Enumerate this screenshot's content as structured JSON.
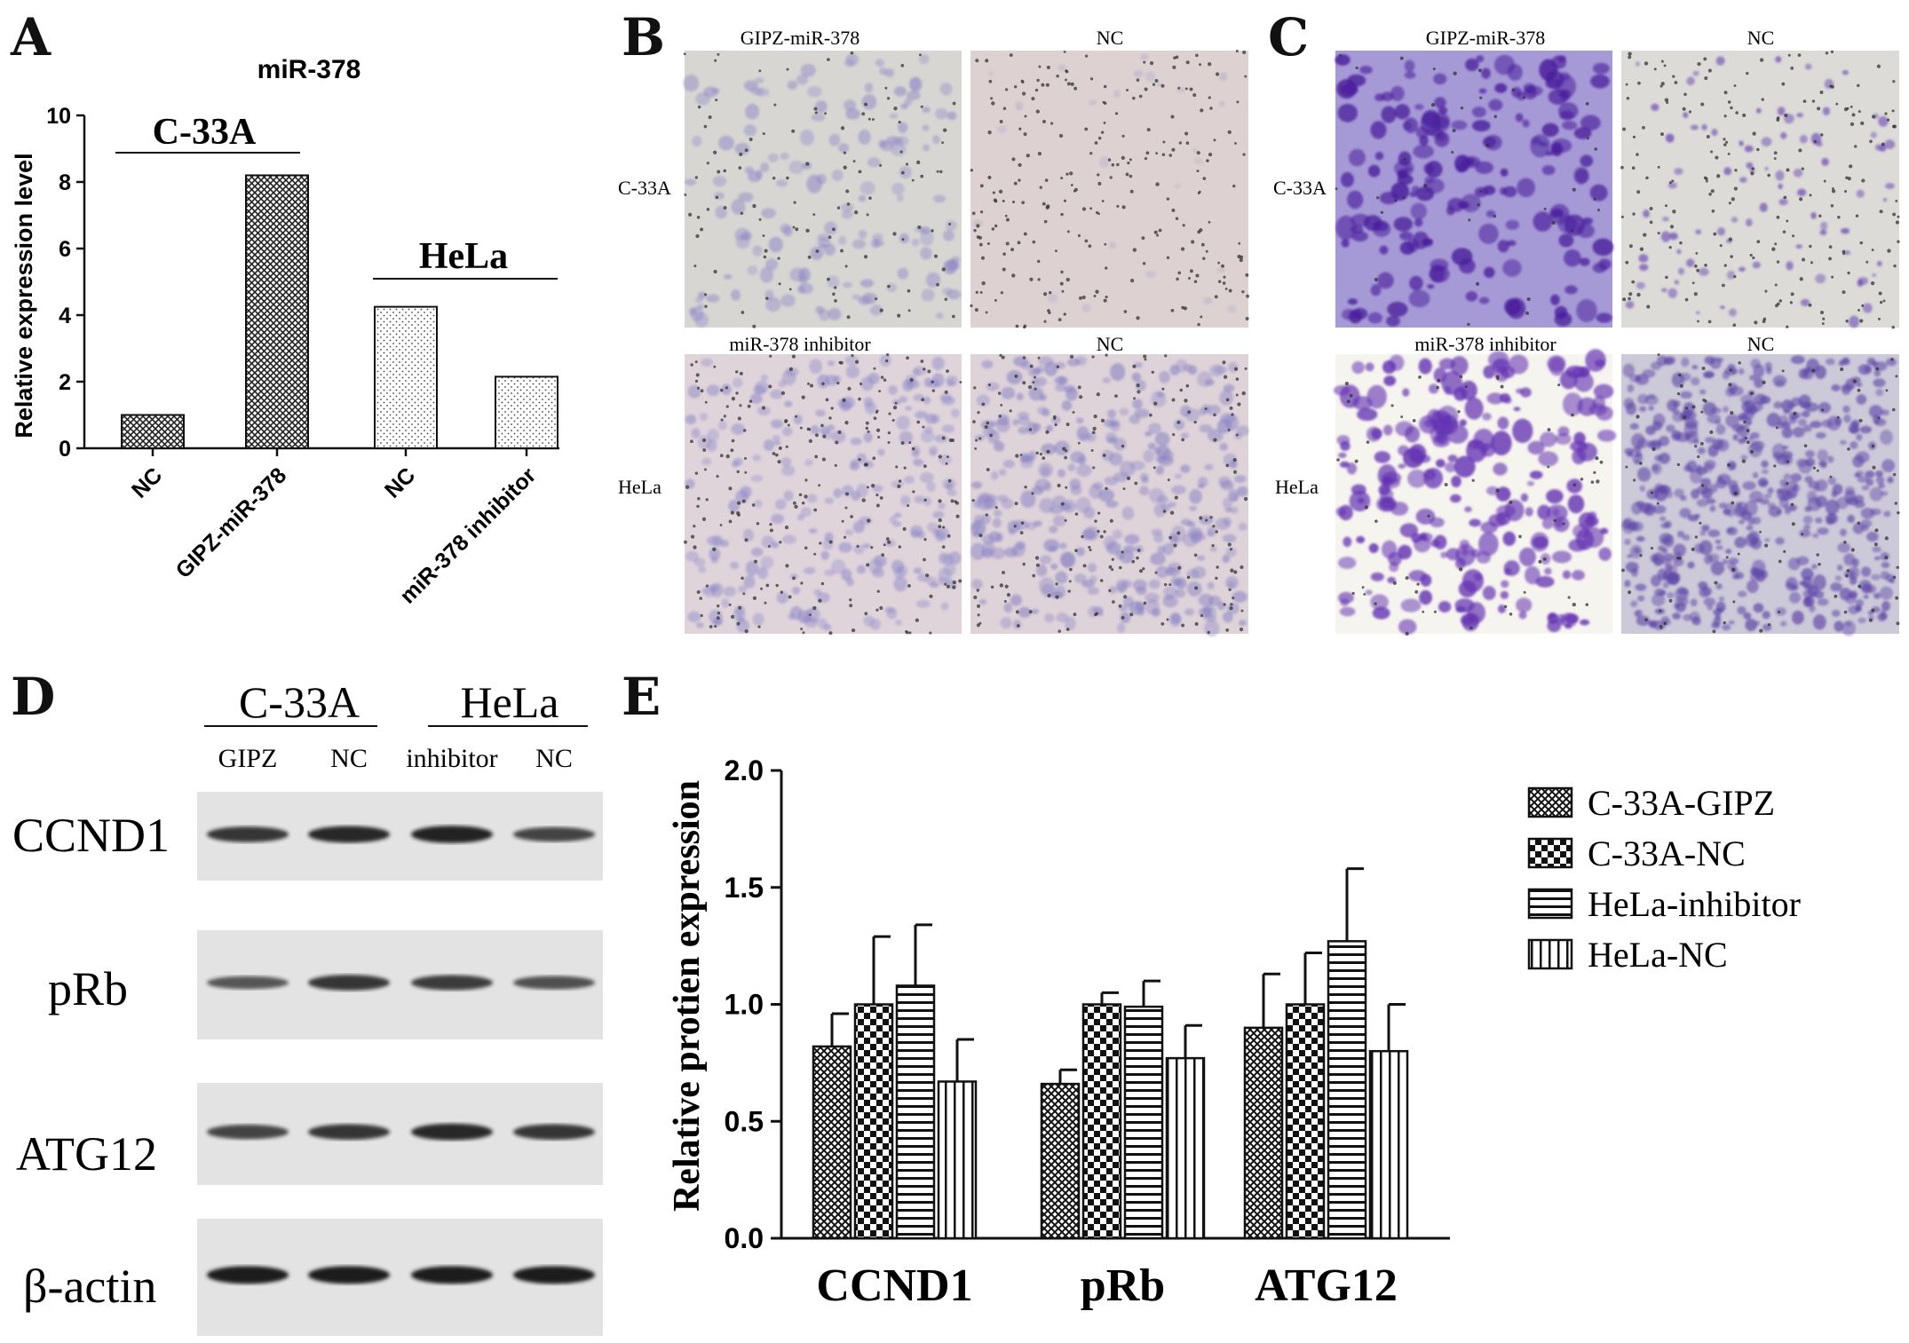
{
  "panels": {
    "a": "A",
    "b": "B",
    "c": "C",
    "d": "D",
    "e": "E"
  },
  "colors": {
    "stain_light": "#8d86c7",
    "stain_dark": "#5b2ea8",
    "field_grey": "#d9d8d2",
    "field_pinkish": "#e2dde0",
    "blot_bg": "#e6e6e6",
    "band": "#262626"
  },
  "chart_a": {
    "title": "miR-378",
    "ylabel": "Relative expression level",
    "group_labels": [
      "C-33A",
      "HeLa"
    ]
  },
  "chart_data": [
    {
      "type": "bar",
      "title": "miR-378",
      "xlabel": "",
      "ylabel": "Relative expression level",
      "categories": [
        "NC",
        "GIPZ-miR-378",
        "NC",
        "miR-378 inhibitor"
      ],
      "values": [
        1.0,
        8.2,
        4.25,
        2.15
      ],
      "ylim": [
        0,
        10
      ],
      "yticks": [
        0,
        2,
        4,
        6,
        8,
        10
      ],
      "groups": [
        {
          "label": "C-33A",
          "categories": [
            0,
            1
          ]
        },
        {
          "label": "HeLa",
          "categories": [
            2,
            3
          ]
        }
      ],
      "patterns": [
        "crosshatch",
        "crosshatch",
        "dots",
        "dots"
      ],
      "grid": false
    },
    {
      "type": "bar",
      "title": "",
      "xlabel": "",
      "ylabel": "Relative protien expression",
      "categories": [
        "CCND1",
        "pRb",
        "ATG12"
      ],
      "ylim": [
        0,
        2.0
      ],
      "yticks": [
        "0.0",
        "0.5",
        "1.0",
        "1.5",
        "2.0"
      ],
      "series": [
        {
          "name": "C-33A-GIPZ",
          "values": [
            0.82,
            0.66,
            0.9
          ],
          "errors": [
            0.14,
            0.06,
            0.23
          ],
          "pattern": "fine-check"
        },
        {
          "name": "C-33A-NC",
          "values": [
            1.0,
            1.0,
            1.0
          ],
          "errors": [
            0.29,
            0.05,
            0.22
          ],
          "pattern": "checker"
        },
        {
          "name": "HeLa-inhibitor",
          "values": [
            1.08,
            0.99,
            1.27
          ],
          "errors": [
            0.26,
            0.11,
            0.31
          ],
          "pattern": "horizontal"
        },
        {
          "name": "HeLa-NC",
          "values": [
            0.67,
            0.77,
            0.8
          ],
          "errors": [
            0.18,
            0.14,
            0.2
          ],
          "pattern": "vertical"
        }
      ],
      "legend": "right",
      "grid": false
    }
  ],
  "micrographs": {
    "b": {
      "col_titles_top": [
        "GIPZ-miR-378",
        "NC"
      ],
      "col_titles_bottom": [
        "miR-378 inhibitor",
        "NC"
      ],
      "row_labels": [
        "C-33A",
        "HeLa"
      ]
    },
    "c": {
      "col_titles_top": [
        "GIPZ-miR-378",
        "NC"
      ],
      "col_titles_bottom": [
        "miR-378 inhibitor",
        "NC"
      ],
      "row_labels": [
        "C-33A",
        "HeLa"
      ]
    }
  },
  "western": {
    "groups": [
      "C-33A",
      "HeLa"
    ],
    "lanes": [
      "GIPZ",
      "NC",
      "inhibitor",
      "NC"
    ],
    "proteins": [
      "CCND1",
      "pRb",
      "ATG12",
      "β-actin"
    ],
    "band_intensity": [
      [
        0.8,
        0.9,
        0.95,
        0.7
      ],
      [
        0.55,
        0.8,
        0.75,
        0.6
      ],
      [
        0.7,
        0.8,
        0.9,
        0.8
      ],
      [
        1.0,
        1.0,
        1.0,
        1.0
      ]
    ]
  }
}
